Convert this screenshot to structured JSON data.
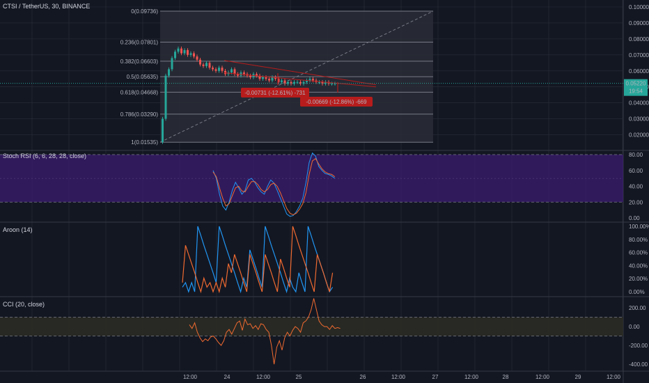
{
  "header": {
    "symbol_title": "CTSI / TetherUS, 30, BINANCE"
  },
  "colors": {
    "bg": "#131722",
    "grid": "#2a2e39",
    "up": "#26a69a",
    "down": "#ef5350",
    "fib_fill": "#2a2d36",
    "fib_line": "#787b86",
    "trend": "#b71c1c",
    "rsi_band": "#3a1b6b",
    "rsi_k": "#2196f3",
    "rsi_d": "#f06a30",
    "aroon_up": "#2196f3",
    "aroon_down": "#f06a30",
    "cci_band": "#2b2b25",
    "cci_line": "#f06a30",
    "price_tag": "#26a69a"
  },
  "price_axis": {
    "ticks": [
      "0.10000",
      "0.09000",
      "0.08000",
      "0.07000",
      "0.06000",
      "0.05000",
      "0.04000",
      "0.03000",
      "0.02000"
    ],
    "current_price": "0.05220",
    "countdown": "19:54"
  },
  "fib_levels": [
    {
      "label": "0(0.09736)",
      "value": 0.09736
    },
    {
      "label": "0.236(0.07801)",
      "value": 0.07801
    },
    {
      "label": "0.382(0.06603)",
      "value": 0.06603
    },
    {
      "label": "0.5(0.05635)",
      "value": 0.05635
    },
    {
      "label": "0.618(0.04668)",
      "value": 0.04668
    },
    {
      "label": "0.786(0.03290)",
      "value": 0.0329
    },
    {
      "label": "1(0.01535)",
      "value": 0.01535
    }
  ],
  "measure_labels": [
    "-0.00731 (-12.61%) -731",
    "-0.00669 (-12.86%) -669"
  ],
  "time_axis": {
    "ticks": [
      "12:00",
      "24",
      "12:00",
      "25",
      "26",
      "12:00",
      "27",
      "12:00",
      "28",
      "12:00",
      "29",
      "12:00"
    ]
  },
  "stoch_rsi": {
    "title": "Stoch RSI (6, 6, 28, 28, close)",
    "ticks": [
      "80.00",
      "60.00",
      "40.00",
      "20.00",
      "0.00"
    ],
    "band": [
      20,
      80
    ]
  },
  "aroon": {
    "title": "Aroon (14)",
    "ticks": [
      "100.00%",
      "80.00%",
      "60.00%",
      "40.00%",
      "20.00%",
      "0.00%"
    ]
  },
  "cci": {
    "title": "CCI (20, close)",
    "ticks": [
      "200.00",
      "0.00",
      "-200.00",
      "-400.00"
    ],
    "band": [
      -100,
      100
    ]
  },
  "chart_data": [
    {
      "type": "candlestick",
      "title": "CTSI / TetherUS, 30, BINANCE",
      "ylim": [
        0.015,
        0.1
      ],
      "x_ticks": [
        "12:00",
        "24",
        "12:00",
        "25",
        "26",
        "12:00",
        "27",
        "12:00",
        "28",
        "12:00",
        "29",
        "12:00"
      ],
      "close": [
        0.03,
        0.057,
        0.061,
        0.068,
        0.072,
        0.074,
        0.071,
        0.073,
        0.07,
        0.071,
        0.069,
        0.067,
        0.064,
        0.063,
        0.065,
        0.062,
        0.061,
        0.06,
        0.062,
        0.06,
        0.058,
        0.059,
        0.061,
        0.058,
        0.057,
        0.059,
        0.058,
        0.057,
        0.056,
        0.058,
        0.057,
        0.055,
        0.056,
        0.055,
        0.054,
        0.056,
        0.055,
        0.053,
        0.054,
        0.052,
        0.053,
        0.052,
        0.053,
        0.053,
        0.052,
        0.053,
        0.054,
        0.055,
        0.054,
        0.053,
        0.053,
        0.052,
        0.053,
        0.052,
        0.052,
        0.052
      ],
      "current_price": 0.0522
    },
    {
      "type": "line",
      "title": "Stoch RSI (6, 6, 28, 28, close)",
      "ylim": [
        0,
        85
      ],
      "series": [
        {
          "values": [
            60,
            50,
            30,
            15,
            10,
            20,
            35,
            45,
            38,
            30,
            35,
            48,
            50,
            45,
            38,
            33,
            30,
            40,
            48,
            44,
            35,
            25,
            15,
            5,
            2,
            3,
            8,
            15,
            25,
            45,
            70,
            82,
            78,
            65,
            60,
            56,
            55,
            53,
            50
          ]
        },
        {
          "values": [
            58,
            52,
            38,
            25,
            15,
            18,
            28,
            38,
            40,
            34,
            33,
            40,
            46,
            46,
            42,
            36,
            33,
            36,
            42,
            44,
            40,
            32,
            22,
            12,
            6,
            4,
            6,
            11,
            18,
            32,
            55,
            72,
            75,
            68,
            62,
            58,
            56,
            55,
            52
          ]
        }
      ]
    },
    {
      "type": "line",
      "title": "Aroon (14)",
      "ylim": [
        0,
        100
      ],
      "series": [
        {
          "values": [
            7,
            14,
            0,
            14,
            0,
            100,
            86,
            71,
            57,
            43,
            29,
            14,
            100,
            86,
            71,
            57,
            43,
            29,
            14,
            0,
            21,
            7,
            64,
            50,
            36,
            21,
            7,
            100,
            86,
            71,
            57,
            43,
            29,
            14,
            0,
            21,
            7,
            0,
            29,
            14,
            0,
            100,
            86,
            71,
            57,
            43,
            29,
            14,
            0,
            7
          ]
        },
        {
          "values": [
            14,
            71,
            57,
            43,
            29,
            14,
            0,
            21,
            7,
            14,
            0,
            14,
            0,
            21,
            7,
            43,
            29,
            57,
            43,
            29,
            14,
            0,
            57,
            43,
            29,
            14,
            0,
            57,
            43,
            29,
            14,
            0,
            50,
            36,
            21,
            7,
            100,
            86,
            71,
            57,
            43,
            29,
            14,
            0,
            57,
            43,
            29,
            14,
            0,
            29
          ]
        }
      ]
    },
    {
      "type": "line",
      "title": "CCI (20, close)",
      "ylim": [
        -420,
        260
      ],
      "series": [
        {
          "values": [
            20,
            -20,
            40,
            -60,
            -120,
            -160,
            -130,
            -150,
            -110,
            -100,
            -130,
            -170,
            -200,
            -150,
            -60,
            -30,
            -80,
            -20,
            40,
            60,
            -40,
            80,
            20,
            30,
            -20,
            10,
            -30,
            30,
            20,
            -30,
            -60,
            -200,
            -400,
            -220,
            -150,
            -250,
            -120,
            -60,
            -100,
            -40,
            0,
            -20,
            -60,
            40,
            60,
            100,
            180,
            300,
            180,
            60,
            20,
            0,
            0,
            -30,
            10,
            -20,
            -10,
            -20
          ]
        }
      ]
    }
  ]
}
